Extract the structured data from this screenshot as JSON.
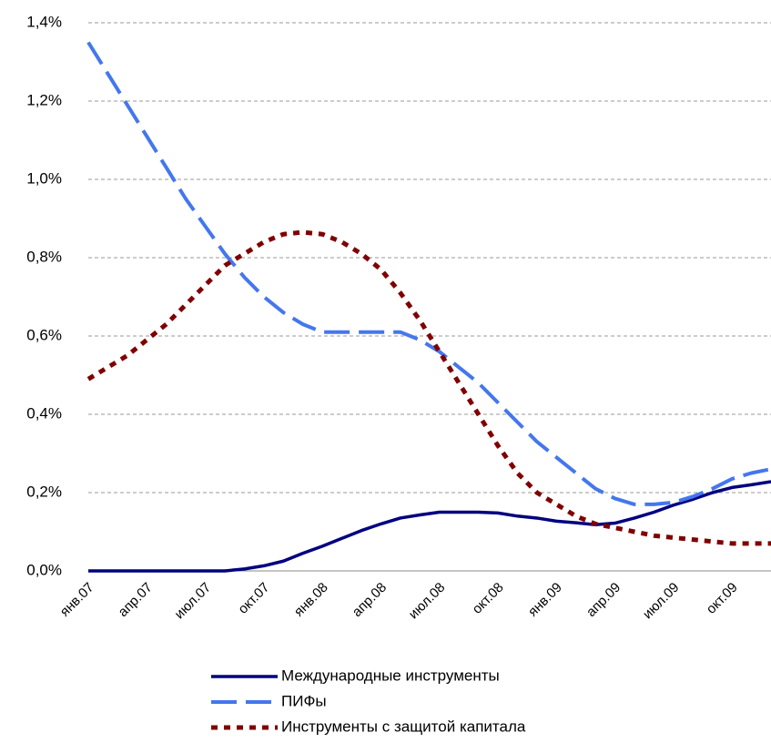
{
  "chart_data": {
    "type": "line",
    "categories": [
      "янв.07",
      null,
      null,
      "апр.07",
      null,
      null,
      "июл.07",
      null,
      null,
      "окт.07",
      null,
      null,
      "янв.08",
      null,
      null,
      "апр.08",
      null,
      null,
      "июл.08",
      null,
      null,
      "окт.08",
      null,
      null,
      "янв.09",
      null,
      null,
      "апр.09",
      null,
      null,
      "июл.09",
      null,
      null,
      "окт.09",
      null,
      null
    ],
    "series": [
      {
        "name": "Международные инструменты",
        "color": "#000080",
        "style": "solid",
        "values": [
          0,
          0,
          0,
          0,
          0,
          0,
          0,
          0,
          0.005,
          0.013,
          0.025,
          0.045,
          0.063,
          0.083,
          0.103,
          0.12,
          0.135,
          0.143,
          0.15,
          0.15,
          0.15,
          0.148,
          0.14,
          0.135,
          0.127,
          0.123,
          0.118,
          0.122,
          0.135,
          0.15,
          0.168,
          0.183,
          0.2,
          0.213,
          0.22,
          0.228
        ]
      },
      {
        "name": "ПИФы",
        "color": "#4477ee",
        "style": "dashed",
        "values": [
          1.35,
          1.27,
          1.19,
          1.11,
          1.03,
          0.95,
          0.88,
          0.81,
          0.75,
          0.7,
          0.66,
          0.63,
          0.61,
          0.61,
          0.61,
          0.61,
          0.61,
          0.59,
          0.56,
          0.52,
          0.48,
          0.43,
          0.38,
          0.33,
          0.29,
          0.25,
          0.21,
          0.185,
          0.17,
          0.17,
          0.175,
          0.19,
          0.21,
          0.235,
          0.25,
          0.26
        ]
      },
      {
        "name": "Инструменты с защитой капитала",
        "color": "#800000",
        "style": "dotted",
        "values": [
          0.49,
          0.52,
          0.55,
          0.59,
          0.63,
          0.68,
          0.73,
          0.78,
          0.81,
          0.84,
          0.86,
          0.865,
          0.86,
          0.84,
          0.81,
          0.77,
          0.71,
          0.64,
          0.56,
          0.48,
          0.4,
          0.32,
          0.25,
          0.2,
          0.17,
          0.14,
          0.12,
          0.11,
          0.1,
          0.09,
          0.085,
          0.08,
          0.075,
          0.07,
          0.07,
          0.07
        ]
      }
    ],
    "ylim": [
      0,
      1.4
    ],
    "yticks": [
      {
        "value": 0,
        "label": "0,0%"
      },
      {
        "value": 0.2,
        "label": "0,2%"
      },
      {
        "value": 0.4,
        "label": "0,4%"
      },
      {
        "value": 0.6,
        "label": "0,6%"
      },
      {
        "value": 0.8,
        "label": "0,8%"
      },
      {
        "value": 1.0,
        "label": "1,0%"
      },
      {
        "value": 1.2,
        "label": "1,2%"
      },
      {
        "value": 1.4,
        "label": "1,4%"
      }
    ],
    "grid": true,
    "legend": "bottom"
  }
}
